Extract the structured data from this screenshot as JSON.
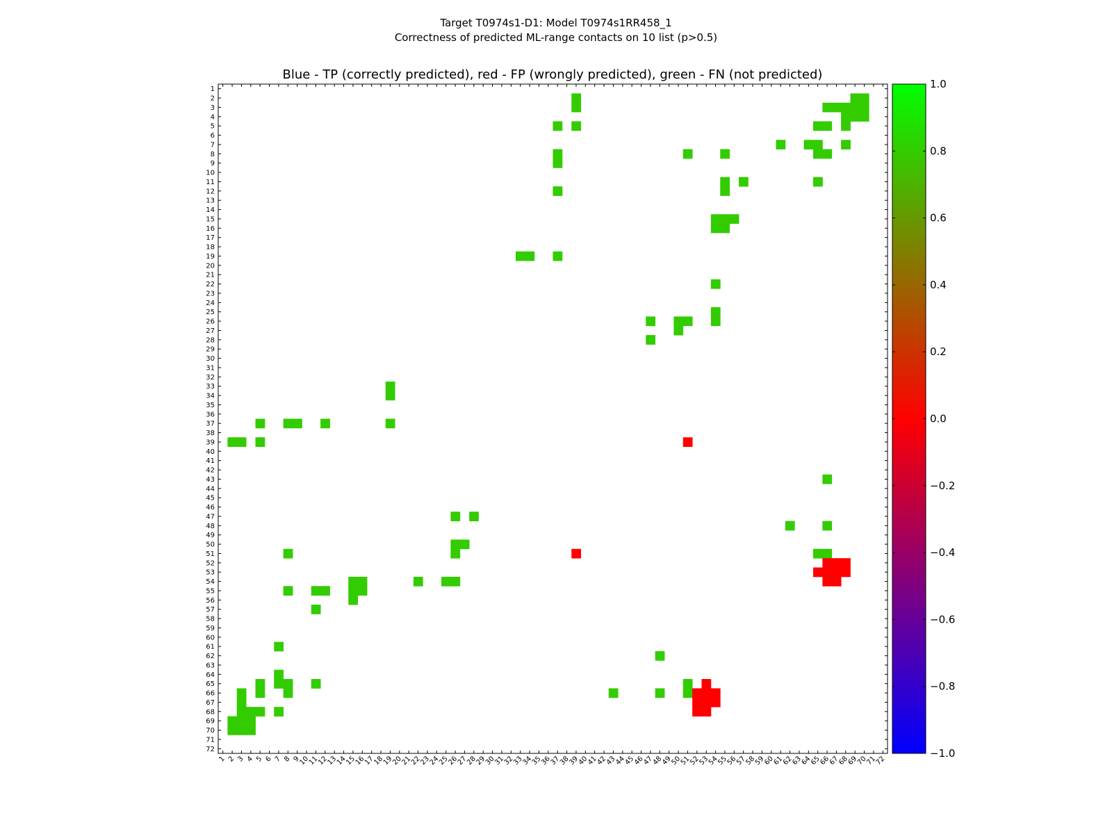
{
  "chart_data": {
    "type": "heatmap",
    "title_line1": "Target T0974s1-D1: Model T0974s1RR458_1",
    "title_line2": "Correctness of predicted ML-range contacts on 10 list (p>0.5)",
    "axes_title": "Blue - TP (correctly predicted), red - FP (wrongly predicted), green - FN (not predicted)",
    "xlim": [
      1,
      72
    ],
    "ylim": [
      1,
      72
    ],
    "y_inverted": true,
    "colorbar": {
      "min": -1.0,
      "max": 1.0,
      "colors": [
        "#0000ff",
        "#ff0000",
        "#00ff00"
      ],
      "ticks": [
        "1.0",
        "0.8",
        "0.6",
        "0.4",
        "0.2",
        "0.0",
        "−0.2",
        "−0.4",
        "−0.6",
        "−0.8",
        "−1.0"
      ],
      "tick_values": [
        1.0,
        0.8,
        0.6,
        0.4,
        0.2,
        0.0,
        -0.2,
        -0.4,
        -0.6,
        -0.8,
        -1.0
      ]
    },
    "fn_color": "#33cc00",
    "fp_color": "#ff0000",
    "cells_fn": [
      [
        39,
        2
      ],
      [
        39,
        3
      ],
      [
        69,
        2
      ],
      [
        70,
        2
      ],
      [
        66,
        3
      ],
      [
        67,
        3
      ],
      [
        68,
        3
      ],
      [
        69,
        3
      ],
      [
        70,
        3
      ],
      [
        68,
        4
      ],
      [
        69,
        4
      ],
      [
        70,
        4
      ],
      [
        37,
        5
      ],
      [
        39,
        5
      ],
      [
        65,
        5
      ],
      [
        66,
        5
      ],
      [
        68,
        5
      ],
      [
        61,
        7
      ],
      [
        64,
        7
      ],
      [
        65,
        7
      ],
      [
        68,
        7
      ],
      [
        37,
        8
      ],
      [
        51,
        8
      ],
      [
        55,
        8
      ],
      [
        65,
        8
      ],
      [
        66,
        8
      ],
      [
        37,
        9
      ],
      [
        55,
        11
      ],
      [
        57,
        11
      ],
      [
        65,
        11
      ],
      [
        37,
        12
      ],
      [
        55,
        12
      ],
      [
        54,
        15
      ],
      [
        55,
        15
      ],
      [
        56,
        15
      ],
      [
        54,
        16
      ],
      [
        55,
        16
      ],
      [
        33,
        19
      ],
      [
        34,
        19
      ],
      [
        37,
        19
      ],
      [
        54,
        22
      ],
      [
        54,
        25
      ],
      [
        47,
        26
      ],
      [
        50,
        26
      ],
      [
        51,
        26
      ],
      [
        54,
        26
      ],
      [
        50,
        27
      ],
      [
        47,
        28
      ],
      [
        19,
        33
      ],
      [
        19,
        34
      ],
      [
        5,
        37
      ],
      [
        8,
        37
      ],
      [
        9,
        37
      ],
      [
        12,
        37
      ],
      [
        19,
        37
      ],
      [
        2,
        39
      ],
      [
        3,
        39
      ],
      [
        5,
        39
      ],
      [
        66,
        43
      ],
      [
        26,
        47
      ],
      [
        28,
        47
      ],
      [
        62,
        48
      ],
      [
        66,
        48
      ],
      [
        26,
        50
      ],
      [
        27,
        50
      ],
      [
        8,
        51
      ],
      [
        26,
        51
      ],
      [
        65,
        51
      ],
      [
        66,
        51
      ],
      [
        15,
        54
      ],
      [
        16,
        54
      ],
      [
        22,
        54
      ],
      [
        25,
        54
      ],
      [
        26,
        54
      ],
      [
        8,
        55
      ],
      [
        11,
        55
      ],
      [
        12,
        55
      ],
      [
        15,
        55
      ],
      [
        16,
        55
      ],
      [
        15,
        56
      ],
      [
        11,
        57
      ],
      [
        7,
        61
      ],
      [
        48,
        62
      ],
      [
        7,
        64
      ],
      [
        5,
        65
      ],
      [
        7,
        65
      ],
      [
        8,
        65
      ],
      [
        11,
        65
      ],
      [
        51,
        65
      ],
      [
        3,
        66
      ],
      [
        5,
        66
      ],
      [
        8,
        66
      ],
      [
        43,
        66
      ],
      [
        48,
        66
      ],
      [
        51,
        66
      ],
      [
        3,
        67
      ],
      [
        3,
        68
      ],
      [
        4,
        68
      ],
      [
        5,
        68
      ],
      [
        7,
        68
      ],
      [
        2,
        69
      ],
      [
        3,
        69
      ],
      [
        4,
        69
      ],
      [
        2,
        70
      ],
      [
        3,
        70
      ],
      [
        4,
        70
      ]
    ],
    "cells_fp": [
      [
        51,
        39
      ],
      [
        39,
        51
      ],
      [
        66,
        52
      ],
      [
        67,
        52
      ],
      [
        68,
        52
      ],
      [
        65,
        53
      ],
      [
        66,
        53
      ],
      [
        67,
        53
      ],
      [
        68,
        53
      ],
      [
        66,
        54
      ],
      [
        67,
        54
      ],
      [
        53,
        65
      ],
      [
        52,
        66
      ],
      [
        53,
        66
      ],
      [
        54,
        66
      ],
      [
        52,
        67
      ],
      [
        53,
        67
      ],
      [
        54,
        67
      ],
      [
        52,
        68
      ],
      [
        53,
        68
      ]
    ]
  }
}
